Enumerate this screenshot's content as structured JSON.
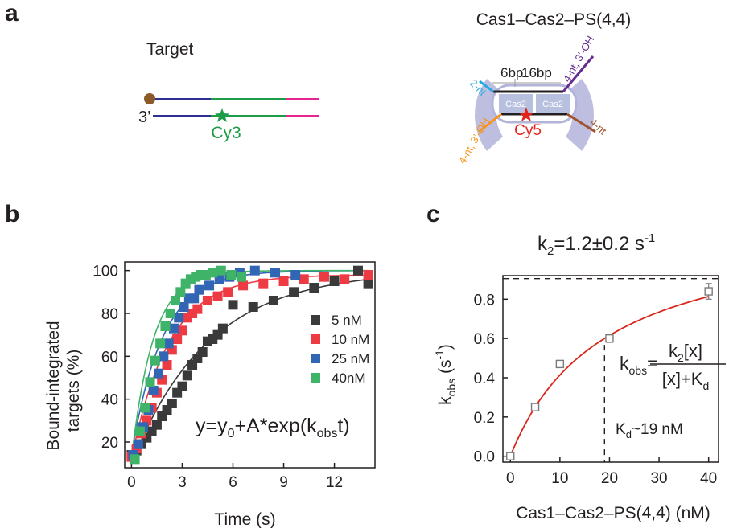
{
  "panel_a": {
    "label": "a",
    "target": {
      "title": "Target",
      "three_prime": "3’",
      "dye": "Cy3"
    },
    "complex": {
      "title": "Cas1–Cas2–PS(4,4)",
      "bp_left": "6bp",
      "bp_right": "16bp",
      "nt_cyan": "2-nt",
      "nt_purple": "4-nt, 3’-OH",
      "nt_orange": "4-nt, 3’-OH",
      "nt_brown": "4-nt",
      "cas1_left": "Cas1",
      "cas1_right": "Cas1",
      "cas2_left": "Cas2",
      "cas2_right": "Cas2",
      "dye": "Cy5"
    }
  },
  "panel_b": {
    "label": "b",
    "equation_text": "y=y0+A*exp(kobs t)",
    "equation_parts": {
      "y": "y=y",
      "y_sub": "0",
      "mid": "+A*exp(k",
      "k_sub": "obs",
      "end": "t)"
    },
    "ylabel_line1": "Bound-integrated",
    "ylabel_line2": "targets  (%)"
  },
  "panel_c": {
    "label": "c",
    "k2_text": "k2=1.2±0.2 s-1",
    "k2_parts": {
      "k": "k",
      "sub": "2",
      "value": "=1.2±0.2 s",
      "sup": "-1"
    },
    "ylabel_text": "kobs (s-1)",
    "ylabel_parts": {
      "k": "k",
      "sub": "obs",
      "unit": " (s",
      "sup": "-1",
      "close": ")"
    },
    "formula_text": "kobs = k2[x] / ([x]+Kd)",
    "formula_parts": {
      "lhs_k": "k",
      "lhs_sub": "obs",
      "eq": "=",
      "num_k": "k",
      "num_sub": "2",
      "num_rest": "[x]",
      "den": "[x]+K",
      "den_sub": "d"
    },
    "kd_text": "Kd~19 nM",
    "kd_parts": {
      "k": "K",
      "sub": "d",
      "rest": "~19 nM"
    }
  },
  "chart_data": [
    {
      "type": "scatter",
      "panel": "b",
      "title": "",
      "xlabel": "Time (s)",
      "ylabel": "Bound-integrated targets  (%)",
      "xlim": [
        -0.4,
        14.4
      ],
      "ylim": [
        8,
        104
      ],
      "xticks": [
        0,
        3,
        6,
        9,
        12
      ],
      "yticks": [
        20,
        40,
        60,
        80,
        100
      ],
      "legend": "right",
      "series": [
        {
          "name": "5 nM",
          "color": "#3a3a3a",
          "fit": {
            "y0": 100,
            "A": -90,
            "k": 0.22
          },
          "points": [
            [
              0,
              14
            ],
            [
              0.3,
              16
            ],
            [
              0.6,
              19
            ],
            [
              0.9,
              22
            ],
            [
              1.2,
              25
            ],
            [
              1.5,
              28
            ],
            [
              1.8,
              32
            ],
            [
              2.1,
              35
            ],
            [
              2.4,
              38
            ],
            [
              2.7,
              43
            ],
            [
              3.0,
              46
            ],
            [
              3.3,
              51
            ],
            [
              3.6,
              56
            ],
            [
              3.9,
              59
            ],
            [
              4.2,
              62
            ],
            [
              4.5,
              67
            ],
            [
              4.8,
              68
            ],
            [
              5.1,
              70
            ],
            [
              5.4,
              73
            ],
            [
              6.0,
              84
            ],
            [
              7.2,
              83
            ],
            [
              8.4,
              86
            ],
            [
              9.6,
              90
            ],
            [
              10.8,
              92
            ],
            [
              12.0,
              95
            ],
            [
              13.4,
              100
            ],
            [
              14.0,
              94
            ]
          ]
        },
        {
          "name": "10 nM",
          "color": "#ee3a43",
          "fit": {
            "y0": 98,
            "A": -86,
            "k": 0.45
          },
          "points": [
            [
              0,
              13
            ],
            [
              0.3,
              17
            ],
            [
              0.6,
              24
            ],
            [
              0.9,
              30
            ],
            [
              1.2,
              36
            ],
            [
              1.5,
              43
            ],
            [
              1.8,
              49
            ],
            [
              2.1,
              56
            ],
            [
              2.4,
              63
            ],
            [
              2.7,
              68
            ],
            [
              3.0,
              72
            ],
            [
              3.3,
              78
            ],
            [
              3.6,
              80
            ],
            [
              3.9,
              82
            ],
            [
              4.5,
              86
            ],
            [
              5.1,
              88
            ],
            [
              5.7,
              90
            ],
            [
              6.6,
              93
            ],
            [
              7.8,
              94
            ],
            [
              9.0,
              95
            ],
            [
              10.2,
              96
            ],
            [
              11.4,
              97
            ],
            [
              12.6,
              96
            ],
            [
              14.0,
              98
            ]
          ]
        },
        {
          "name": "25 nM",
          "color": "#3266b4",
          "fit": {
            "y0": 100,
            "A": -86,
            "k": 0.55
          },
          "points": [
            [
              0.1,
              14
            ],
            [
              0.4,
              19
            ],
            [
              0.7,
              27
            ],
            [
              1.0,
              35
            ],
            [
              1.3,
              44
            ],
            [
              1.6,
              52
            ],
            [
              1.9,
              60
            ],
            [
              2.2,
              66
            ],
            [
              2.5,
              73
            ],
            [
              2.8,
              78
            ],
            [
              3.1,
              83
            ],
            [
              3.4,
              87
            ],
            [
              3.7,
              87
            ],
            [
              4.0,
              91
            ],
            [
              4.6,
              93
            ],
            [
              5.2,
              96
            ],
            [
              5.8,
              97
            ],
            [
              6.4,
              99
            ],
            [
              7.3,
              100
            ],
            [
              8.5,
              99
            ],
            [
              9.7,
              98
            ]
          ]
        },
        {
          "name": "40nM",
          "color": "#3fb468",
          "fit": {
            "y0": 100,
            "A": -88,
            "k": 0.78
          },
          "points": [
            [
              0.2,
              12
            ],
            [
              0.5,
              25
            ],
            [
              0.8,
              36
            ],
            [
              1.1,
              48
            ],
            [
              1.4,
              58
            ],
            [
              1.7,
              66
            ],
            [
              2.0,
              74
            ],
            [
              2.3,
              80
            ],
            [
              2.6,
              86
            ],
            [
              2.9,
              90
            ],
            [
              3.2,
              94
            ],
            [
              3.5,
              96
            ],
            [
              3.8,
              97
            ],
            [
              4.1,
              98
            ],
            [
              4.4,
              98
            ],
            [
              4.8,
              99
            ],
            [
              5.3,
              100
            ],
            [
              5.9,
              98
            ],
            [
              6.5,
              97
            ]
          ]
        }
      ]
    },
    {
      "type": "scatter",
      "panel": "c",
      "title": "k2=1.2±0.2 s-1",
      "xlabel": "Cas1–Cas2–PS(4,4) (nM)",
      "ylabel": "kobs (s-1)",
      "xlim": [
        -1.5,
        42
      ],
      "ylim": [
        -0.03,
        0.92
      ],
      "xticks": [
        0,
        10,
        20,
        30,
        40
      ],
      "yticks": [
        0.0,
        0.2,
        0.4,
        0.6,
        0.8
      ],
      "ytick_labels": [
        "0.0",
        "0.2",
        "0.4",
        "0.6",
        "0.8"
      ],
      "points": {
        "x": [
          0,
          5,
          10,
          20,
          40
        ],
        "y": [
          0.0,
          0.25,
          0.47,
          0.6,
          0.84
        ],
        "err": [
          0.01,
          0.01,
          0.01,
          0.02,
          0.04
        ]
      },
      "fit": {
        "type": "hyperbolic",
        "k2": 1.2,
        "Kd": 19
      },
      "asymptote": 0.905,
      "kd_marker_x": 19,
      "marker_color": "#7a7a7a",
      "fit_color": "#d9261c"
    }
  ]
}
